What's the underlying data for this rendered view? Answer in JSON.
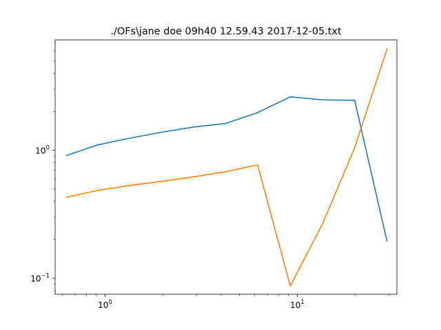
{
  "chart_data": {
    "type": "line",
    "title": "./OFs\\jane doe 09h40 12.59.43 2017-12-05.txt",
    "xlabel": "",
    "ylabel": "",
    "xscale": "log",
    "yscale": "log",
    "xlim": [
      0.55,
      33
    ],
    "ylim": [
      0.075,
      7.3
    ],
    "x_ticks": [
      {
        "value": 1,
        "base": "10",
        "exp": "0"
      },
      {
        "value": 10,
        "base": "10",
        "exp": "1"
      }
    ],
    "y_ticks": [
      {
        "value": 0.1,
        "base": "10",
        "exp": "−1"
      },
      {
        "value": 1,
        "base": "10",
        "exp": "0"
      }
    ],
    "grid": false,
    "legend": "none",
    "series": [
      {
        "color": "#1f77b4",
        "x": [
          0.63,
          0.91,
          1.33,
          1.94,
          2.88,
          4.23,
          6.22,
          9.2,
          13.6,
          19.9,
          29.3
        ],
        "y": [
          0.91,
          1.1,
          1.24,
          1.38,
          1.52,
          1.62,
          1.97,
          2.62,
          2.48,
          2.46,
          0.195
        ]
      },
      {
        "color": "#ff7f0e",
        "x": [
          0.63,
          0.91,
          1.33,
          1.94,
          2.88,
          4.23,
          6.22,
          9.2,
          13.6,
          19.9,
          29.3
        ],
        "y": [
          0.43,
          0.485,
          0.53,
          0.57,
          0.62,
          0.68,
          0.77,
          0.087,
          0.27,
          1.05,
          6.2
        ]
      }
    ]
  }
}
